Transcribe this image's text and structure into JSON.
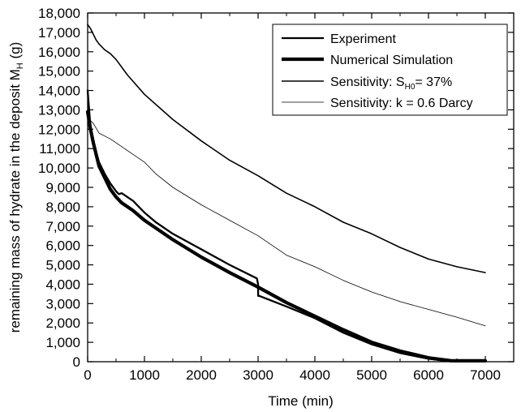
{
  "chart_data": {
    "type": "line",
    "xlabel": "Time (min)",
    "ylabel": {
      "main": "remaining mass of hydrate in the deposit M",
      "sub": "H",
      "unit": " (g)"
    },
    "xlim": [
      0,
      7500
    ],
    "ylim": [
      0,
      18000
    ],
    "x_ticks": [
      0,
      1000,
      2000,
      3000,
      4000,
      5000,
      6000,
      7000
    ],
    "x_tick_labels": [
      "0",
      "1000",
      "2000",
      "3000",
      "4000",
      "5000",
      "6000",
      "7000"
    ],
    "y_ticks": [
      0,
      1000,
      2000,
      3000,
      4000,
      5000,
      6000,
      7000,
      8000,
      9000,
      10000,
      11000,
      12000,
      13000,
      14000,
      15000,
      16000,
      17000,
      18000
    ],
    "y_tick_labels": [
      "0",
      "1,000",
      "2,000",
      "3,000",
      "4,000",
      "5,000",
      "6,000",
      "7,000",
      "8,000",
      "9,000",
      "10,000",
      "11,000",
      "12,000",
      "13,000",
      "14,000",
      "15,000",
      "16,000",
      "17,000",
      "18,000"
    ],
    "grid": false,
    "legend_position": "top-right",
    "legend": [
      {
        "label": "Experiment"
      },
      {
        "label": "Numerical Simulation"
      },
      {
        "label_parts": [
          "Sensitivity: S",
          "H0",
          "= 37%"
        ]
      },
      {
        "label": "Sensitivity: k = 0.6 Darcy"
      }
    ],
    "series": [
      {
        "name": "Experiment",
        "style": "medium",
        "x": [
          0,
          50,
          100,
          200,
          300,
          400,
          500,
          550,
          600,
          700,
          800,
          1000,
          1200,
          1500,
          2000,
          2500,
          2980,
          3000,
          3001,
          3020,
          3500,
          4000,
          4500,
          5000,
          5500,
          6000,
          6300,
          6400,
          6600,
          7000
        ],
        "y": [
          14000,
          12100,
          11300,
          10300,
          9700,
          9200,
          8800,
          8650,
          8700,
          8500,
          8300,
          7700,
          7200,
          6600,
          5800,
          5000,
          4300,
          4000,
          3400,
          3400,
          2850,
          2250,
          1500,
          900,
          450,
          150,
          50,
          50,
          50,
          50
        ]
      },
      {
        "name": "Numerical Simulation",
        "style": "thick",
        "x": [
          0,
          50,
          100,
          200,
          300,
          400,
          500,
          600,
          800,
          1000,
          1200,
          1500,
          2000,
          2500,
          3000,
          3500,
          4000,
          4500,
          5000,
          5500,
          6000,
          6400,
          6600,
          7000
        ],
        "y": [
          12900,
          12000,
          11300,
          10100,
          9500,
          8900,
          8500,
          8200,
          7800,
          7300,
          6900,
          6300,
          5400,
          4600,
          3850,
          3050,
          2350,
          1650,
          1000,
          550,
          200,
          50,
          50,
          50
        ]
      },
      {
        "name": "Sensitivity: SH0= 37%",
        "style": "normal",
        "x": [
          0,
          50,
          100,
          150,
          200,
          300,
          400,
          500,
          700,
          1000,
          1500,
          2000,
          2500,
          3000,
          3500,
          4000,
          4500,
          5000,
          5500,
          6000,
          6500,
          7000
        ],
        "y": [
          17400,
          17200,
          16900,
          16600,
          16400,
          16100,
          15900,
          15600,
          14800,
          13800,
          12500,
          11400,
          10400,
          9600,
          8700,
          8000,
          7200,
          6600,
          5900,
          5300,
          4900,
          4600
        ]
      },
      {
        "name": "Sensitivity: k = 0.6 Darcy",
        "style": "thin",
        "x": [
          0,
          100,
          200,
          400,
          600,
          800,
          1000,
          1100,
          1200,
          1500,
          2000,
          2500,
          3000,
          3500,
          4000,
          4500,
          5000,
          5500,
          6000,
          6500,
          7000
        ],
        "y": [
          12600,
          12300,
          11800,
          11500,
          11100,
          10700,
          10300,
          10000,
          9700,
          9000,
          8100,
          7300,
          6500,
          5500,
          4900,
          4200,
          3600,
          3100,
          2700,
          2300,
          1850
        ]
      }
    ]
  }
}
